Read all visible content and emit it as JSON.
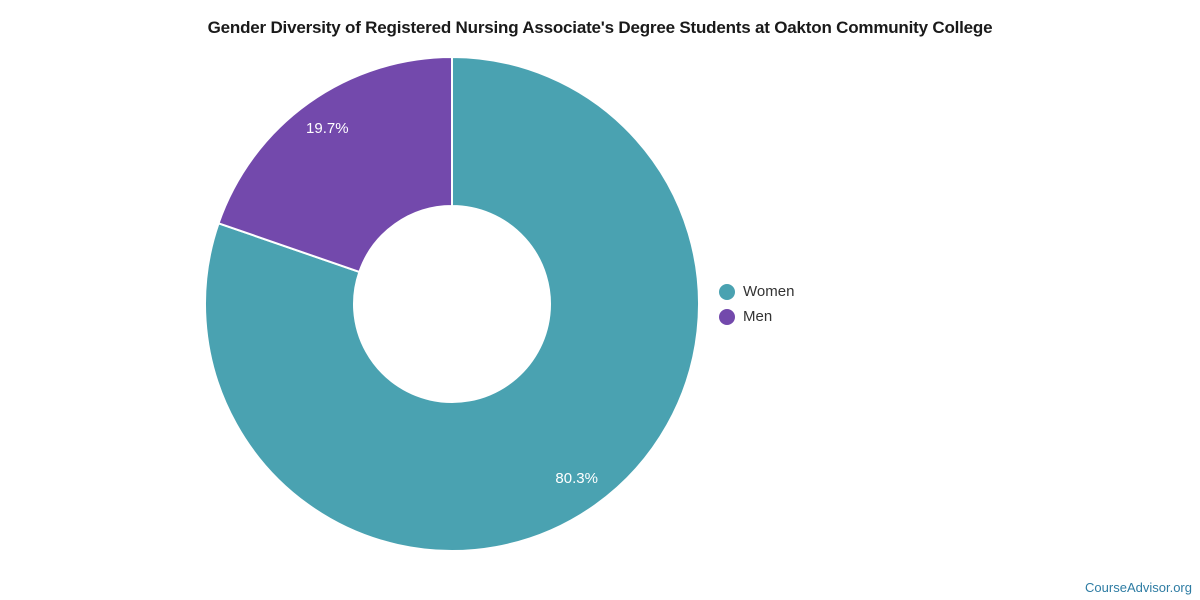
{
  "chart_data": {
    "type": "pie",
    "title": "Gender Diversity of Registered Nursing Associate's Degree Students at Oakton Community College",
    "donut": true,
    "start_angle_deg": 0,
    "direction": "clockwise",
    "inner_radius_ratio": 0.4,
    "legend_position": "right",
    "label_color": "#ffffff",
    "background_color": "#ffffff",
    "series": [
      {
        "name": "Women",
        "value": 80.3,
        "label": "80.3%",
        "color": "#4aa2b1"
      },
      {
        "name": "Men",
        "value": 19.7,
        "label": "19.7%",
        "color": "#7349ac"
      }
    ]
  },
  "footer": {
    "credit": "CourseAdvisor.org"
  }
}
